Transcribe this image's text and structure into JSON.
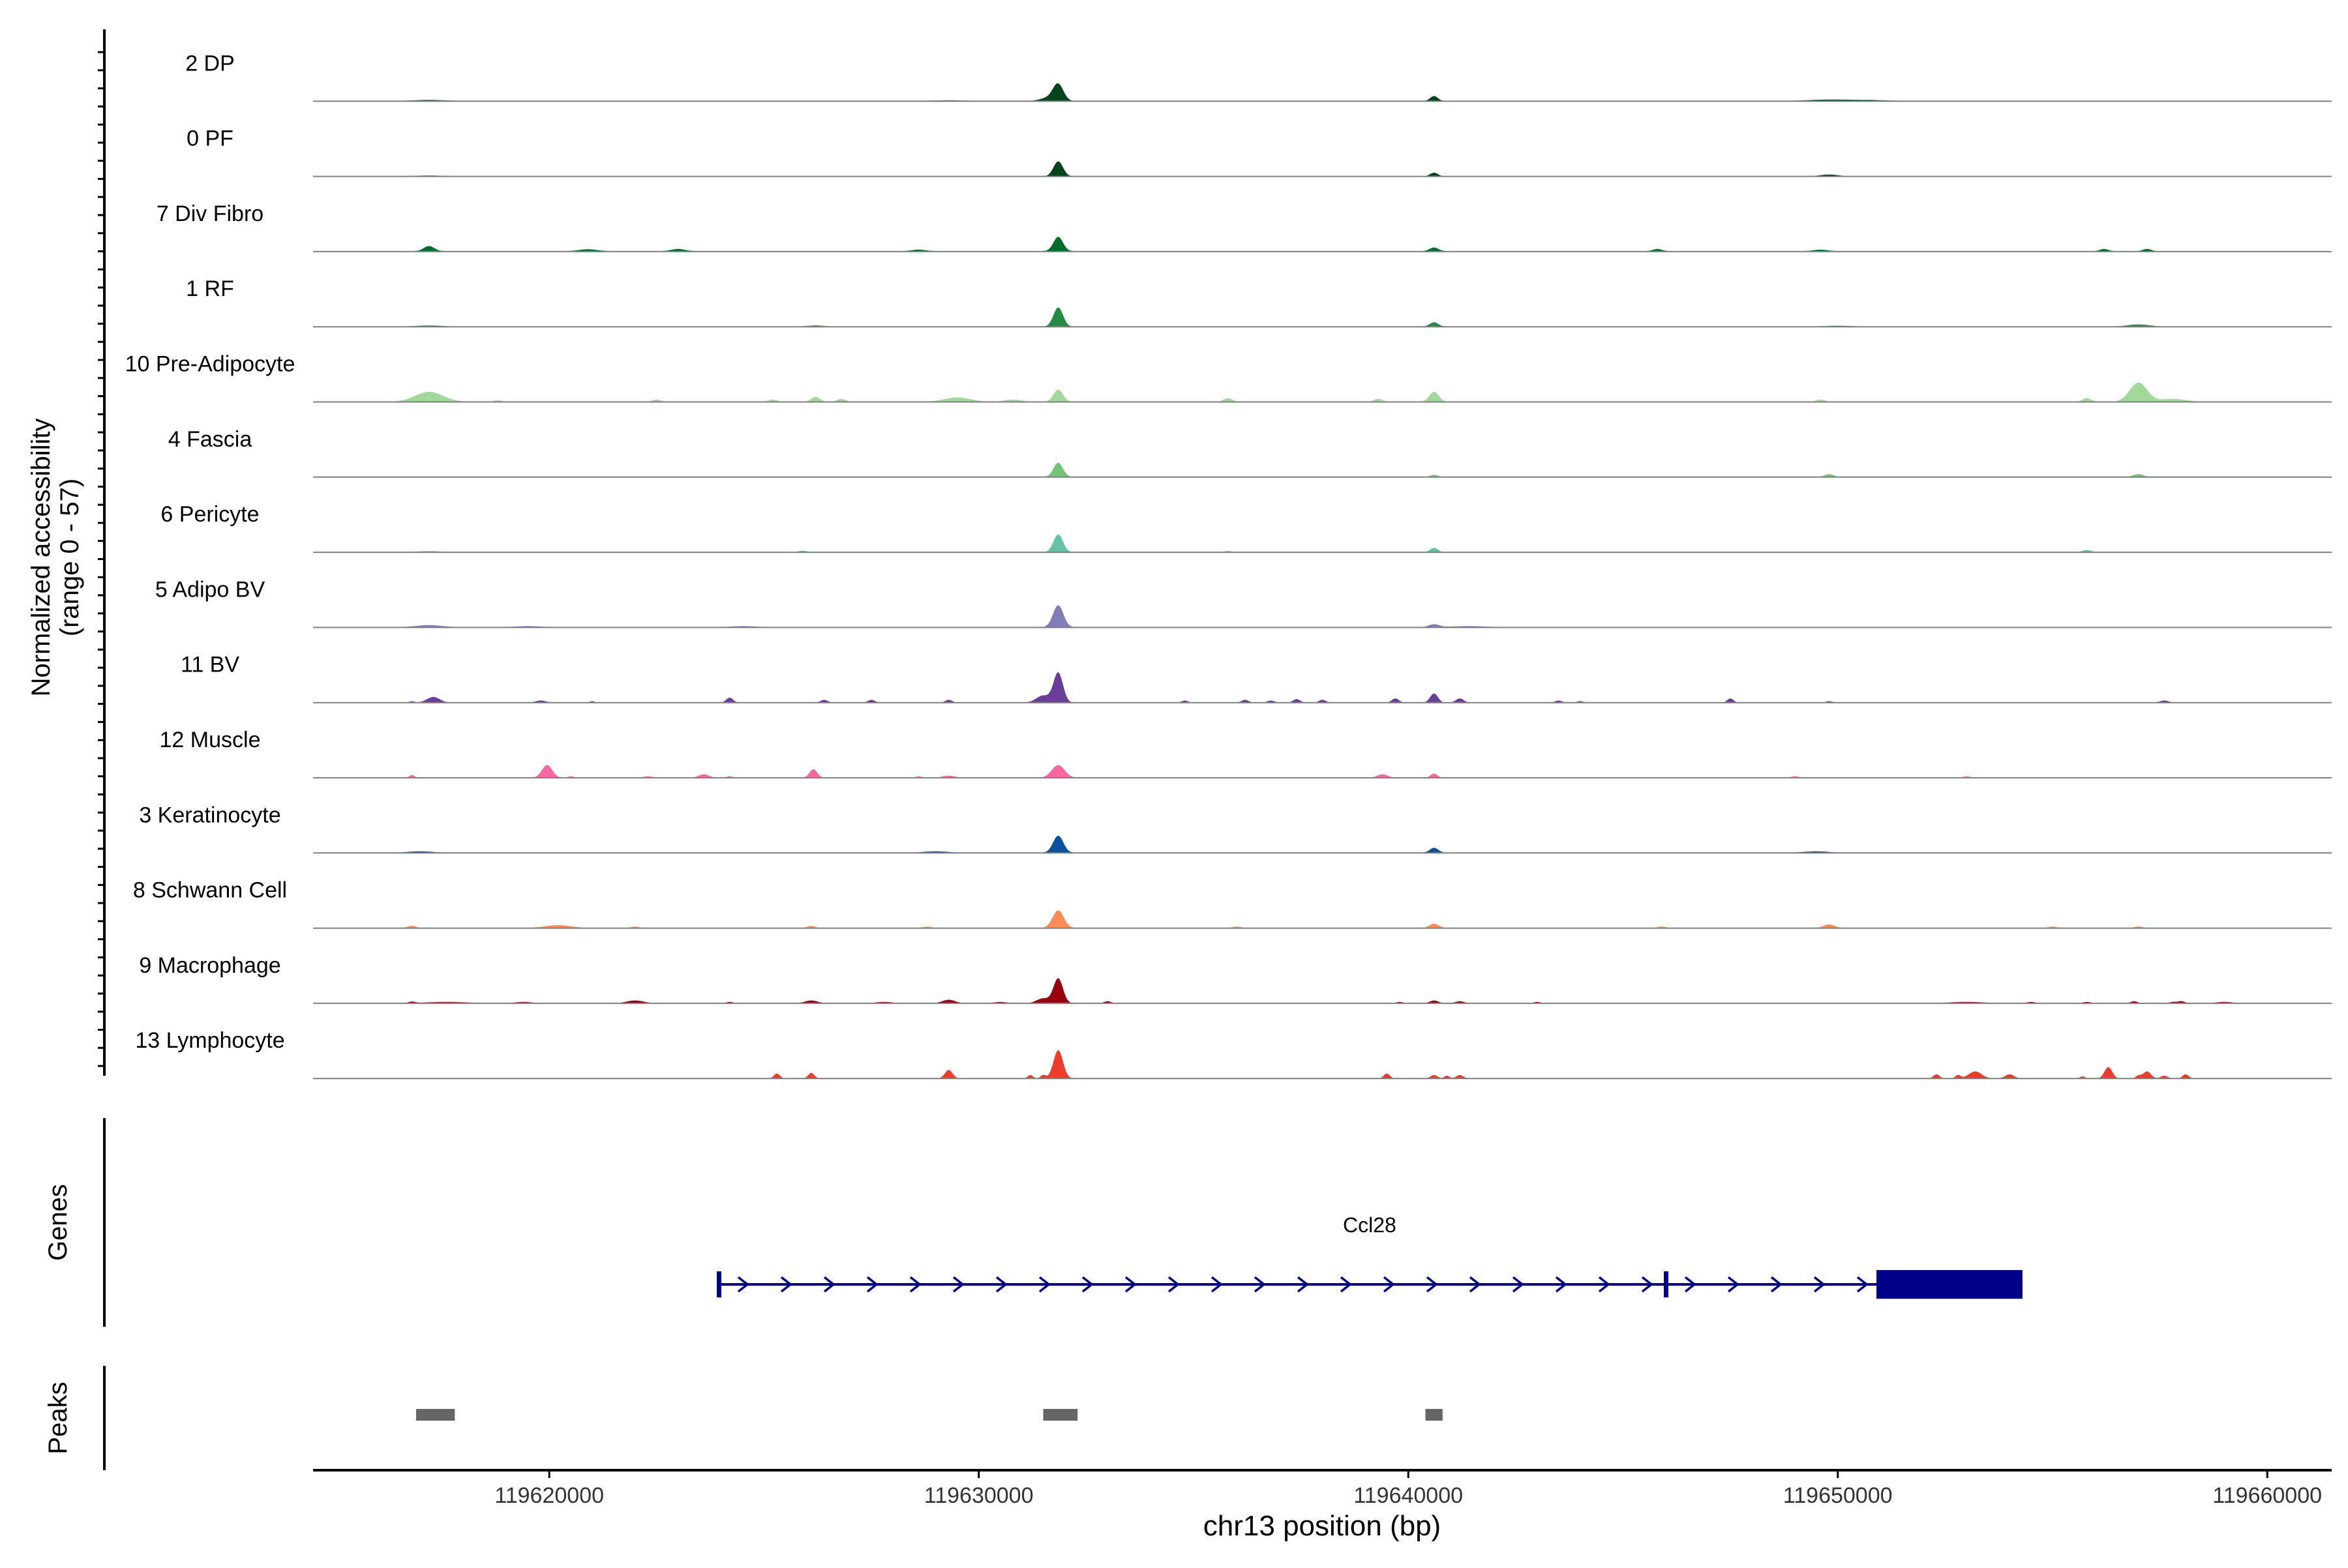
{
  "chart_data": {
    "type": "area",
    "coverage": {
      "ylabel": "Normalized accessibility",
      "ylabel_range": "(range 0 - 57)",
      "ylim": [
        0,
        57
      ],
      "xlim": [
        119614500,
        119661500
      ],
      "tracks": [
        {
          "name": "2 DP",
          "color": "#00441b",
          "baseline": 0.3,
          "peaks": [
            [
              119631850,
              22,
              120
            ],
            [
              119631650,
              5,
              200
            ],
            [
              119640600,
              7,
              90
            ],
            [
              119617200,
              1.5,
              400
            ],
            [
              119649800,
              2,
              500
            ],
            [
              119629300,
              1,
              400
            ],
            [
              119650800,
              1.2,
              400
            ]
          ]
        },
        {
          "name": "0 PF",
          "color": "#00441b",
          "baseline": 0.2,
          "peaks": [
            [
              119631850,
              21,
              110
            ],
            [
              119640600,
              5,
              90
            ],
            [
              119649800,
              2.5,
              200
            ],
            [
              119617200,
              1,
              400
            ]
          ]
        },
        {
          "name": "7 Div Fibro",
          "color": "#006d2c",
          "baseline": 0.8,
          "peaks": [
            [
              119631850,
              20,
              110
            ],
            [
              119617200,
              7,
              120
            ],
            [
              119640600,
              5,
              100
            ],
            [
              119620900,
              2.5,
              200
            ],
            [
              119623000,
              3,
              150
            ],
            [
              119645800,
              3,
              100
            ],
            [
              119656200,
              3,
              90
            ],
            [
              119657200,
              3,
              90
            ],
            [
              119628600,
              2,
              150
            ],
            [
              119649600,
              2,
              150
            ]
          ]
        },
        {
          "name": "1 RF",
          "color": "#238b45",
          "baseline": 0.3,
          "peaks": [
            [
              119631850,
              27,
              110
            ],
            [
              119640600,
              6,
              100
            ],
            [
              119657000,
              3,
              250
            ],
            [
              119617200,
              1.5,
              300
            ],
            [
              119626200,
              1.5,
              200
            ],
            [
              119650000,
              1.2,
              300
            ]
          ]
        },
        {
          "name": "10 Pre-Adipocyte",
          "color": "#a1d99b",
          "baseline": 0.3,
          "peaks": [
            [
              119617200,
              14,
              320
            ],
            [
              119657000,
              27,
              200
            ],
            [
              119631850,
              17,
              110
            ],
            [
              119640600,
              14,
              110
            ],
            [
              119626200,
              7,
              100
            ],
            [
              119655800,
              5,
              100
            ],
            [
              119629500,
              6,
              300
            ],
            [
              119635800,
              5,
              100
            ],
            [
              119639300,
              4,
              100
            ],
            [
              119626800,
              4,
              100
            ],
            [
              119657800,
              4,
              300
            ],
            [
              119622500,
              3,
              100
            ],
            [
              119625200,
              3,
              100
            ],
            [
              119649600,
              3,
              100
            ],
            [
              119618800,
              2,
              100
            ],
            [
              119630800,
              3,
              200
            ]
          ]
        },
        {
          "name": "4 Fascia",
          "color": "#74c476",
          "baseline": 0.2,
          "peaks": [
            [
              119631850,
              20,
              110
            ],
            [
              119640600,
              3,
              90
            ],
            [
              119649800,
              4,
              100
            ],
            [
              119657000,
              4,
              120
            ]
          ]
        },
        {
          "name": "6 Pericyte",
          "color": "#66c2a4",
          "baseline": 0.2,
          "peaks": [
            [
              119631850,
              25,
              110
            ],
            [
              119640600,
              6,
              90
            ],
            [
              119655800,
              3,
              100
            ],
            [
              119617200,
              1.5,
              300
            ],
            [
              119625900,
              2,
              100
            ],
            [
              119635800,
              1.5,
              100
            ]
          ]
        },
        {
          "name": "5 Adipo BV",
          "color": "#807dba",
          "baseline": 0.4,
          "peaks": [
            [
              119631850,
              31,
              120
            ],
            [
              119640600,
              4,
              120
            ],
            [
              119617200,
              3,
              300
            ],
            [
              119641400,
              1.5,
              400
            ],
            [
              119624500,
              1.5,
              300
            ],
            [
              119619500,
              1.5,
              300
            ]
          ]
        },
        {
          "name": "11 BV",
          "color": "#6a3d9a",
          "baseline": 0,
          "peaks": [
            [
              119631850,
              42,
              110
            ],
            [
              119631500,
              10,
              160
            ],
            [
              119640600,
              13,
              90
            ],
            [
              119617300,
              8,
              150
            ],
            [
              119629300,
              4,
              80
            ],
            [
              119624200,
              7,
              80
            ],
            [
              119626400,
              4,
              80
            ],
            [
              119627500,
              4,
              80
            ],
            [
              119639700,
              6,
              80
            ],
            [
              119641200,
              6,
              90
            ],
            [
              119638000,
              4,
              80
            ],
            [
              119647500,
              6,
              70
            ],
            [
              119634800,
              3,
              70
            ],
            [
              119636200,
              4,
              80
            ],
            [
              119637400,
              5,
              80
            ],
            [
              119657600,
              3,
              100
            ],
            [
              119619800,
              3,
              120
            ],
            [
              119616800,
              2,
              60
            ],
            [
              119621000,
              2,
              60
            ],
            [
              119643500,
              3,
              80
            ],
            [
              119649800,
              2,
              80
            ],
            [
              119644000,
              2,
              80
            ],
            [
              119636800,
              3,
              80
            ]
          ]
        },
        {
          "name": "12 Muscle",
          "color": "#f768a1",
          "baseline": 0,
          "peaks": [
            [
              119631850,
              18,
              150
            ],
            [
              119619950,
              18,
              120
            ],
            [
              119626150,
              12,
              90
            ],
            [
              119623600,
              5,
              120
            ],
            [
              119639400,
              5,
              120
            ],
            [
              119640600,
              6,
              80
            ],
            [
              119616800,
              4,
              60
            ],
            [
              119629300,
              3,
              150
            ],
            [
              119622300,
              2,
              120
            ],
            [
              119649000,
              2,
              100
            ],
            [
              119653000,
              2,
              100
            ],
            [
              119624200,
              2,
              80
            ],
            [
              119620500,
              2,
              80
            ],
            [
              119628600,
              2,
              80
            ]
          ]
        },
        {
          "name": "3 Keratinocyte",
          "color": "#08519c",
          "baseline": 0.3,
          "peaks": [
            [
              119631850,
              24,
              120
            ],
            [
              119640600,
              7,
              100
            ],
            [
              119617000,
              2,
              300
            ],
            [
              119629000,
              2,
              300
            ],
            [
              119649500,
              2,
              300
            ]
          ]
        },
        {
          "name": "8 Schwann Cell",
          "color": "#fc8d59",
          "baseline": 0.2,
          "peaks": [
            [
              119631850,
              25,
              130
            ],
            [
              119620200,
              4,
              300
            ],
            [
              119640600,
              6,
              110
            ],
            [
              119649800,
              5,
              130
            ],
            [
              119616800,
              3,
              100
            ],
            [
              119626100,
              3,
              90
            ],
            [
              119636000,
              2,
              100
            ],
            [
              119655000,
              2,
              100
            ],
            [
              119657000,
              2,
              100
            ],
            [
              119645900,
              2,
              100
            ],
            [
              119628800,
              2,
              100
            ],
            [
              119622000,
              2,
              100
            ]
          ]
        },
        {
          "name": "9 Macrophage",
          "color": "#99000d",
          "baseline": 0,
          "peaks": [
            [
              119631850,
              35,
              110
            ],
            [
              119631500,
              7,
              150
            ],
            [
              119622000,
              4,
              200
            ],
            [
              119626100,
              4,
              150
            ],
            [
              119629300,
              5,
              150
            ],
            [
              119640600,
              4,
              100
            ],
            [
              119641200,
              3,
              100
            ],
            [
              119639800,
              2,
              80
            ],
            [
              119658000,
              3,
              80
            ],
            [
              119656900,
              3,
              80
            ],
            [
              119653000,
              2,
              400
            ],
            [
              119617600,
              2,
              500
            ],
            [
              119619400,
              2,
              200
            ],
            [
              119627800,
              2,
              200
            ],
            [
              119630500,
              2,
              150
            ],
            [
              119633000,
              3,
              80
            ],
            [
              119643000,
              2,
              80
            ],
            [
              119654500,
              2,
              100
            ],
            [
              119655800,
              2,
              100
            ],
            [
              119657800,
              2,
              80
            ],
            [
              119624200,
              2,
              80
            ],
            [
              119659000,
              2,
              200
            ],
            [
              119616800,
              2,
              80
            ]
          ]
        },
        {
          "name": "13 Lymphocyte",
          "color": "#ef3b2c",
          "baseline": 0,
          "peaks": [
            [
              119631850,
              40,
              110
            ],
            [
              119629300,
              12,
              90
            ],
            [
              119626100,
              8,
              70
            ],
            [
              119625300,
              7,
              70
            ],
            [
              119639500,
              7,
              70
            ],
            [
              119640600,
              5,
              80
            ],
            [
              119641200,
              5,
              80
            ],
            [
              119656300,
              16,
              90
            ],
            [
              119657200,
              10,
              90
            ],
            [
              119658100,
              6,
              70
            ],
            [
              119652300,
              6,
              70
            ],
            [
              119653200,
              10,
              150
            ],
            [
              119654000,
              6,
              100
            ],
            [
              119631200,
              5,
              60
            ],
            [
              119631500,
              5,
              60
            ],
            [
              119652800,
              5,
              60
            ],
            [
              119657600,
              4,
              80
            ],
            [
              119655700,
              3,
              60
            ],
            [
              119657000,
              4,
              60
            ],
            [
              119640900,
              4,
              60
            ]
          ]
        }
      ]
    },
    "genes": {
      "label": "Genes",
      "items": [
        {
          "name": "Ccl28",
          "start": 119623900,
          "end": 119654300,
          "strand": "+",
          "color": "#00008b",
          "exons": [
            [
              119623900,
              119623990
            ],
            [
              119645950,
              119646050
            ],
            [
              119650900,
              119654300
            ]
          ]
        }
      ]
    },
    "peaks": {
      "label": "Peaks",
      "color": "#666666",
      "regions": [
        [
          119616900,
          119617800
        ],
        [
          119631500,
          119632300
        ],
        [
          119640400,
          119640800
        ]
      ]
    },
    "x_axis": {
      "label": "chr13 position (bp)",
      "ticks": [
        119620000,
        119630000,
        119640000,
        119650000,
        119660000
      ]
    }
  }
}
